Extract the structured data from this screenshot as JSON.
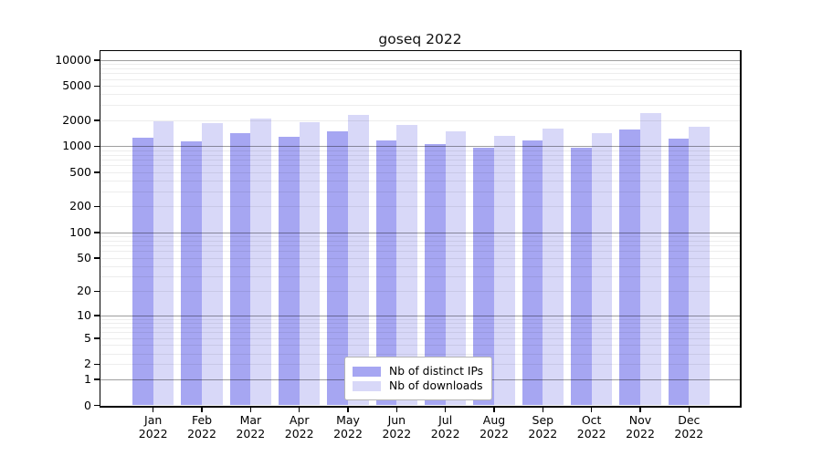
{
  "chart_data": {
    "type": "bar",
    "title": "goseq 2022",
    "year_label": "2022",
    "categories": [
      "Jan",
      "Feb",
      "Mar",
      "Apr",
      "May",
      "Jun",
      "Jul",
      "Aug",
      "Sep",
      "Oct",
      "Nov",
      "Dec"
    ],
    "series": [
      {
        "name": "Nb of distinct IPs",
        "color": "#a6a6f2",
        "values": [
          1245,
          1140,
          1430,
          1275,
          1490,
          1170,
          1050,
          970,
          1160,
          955,
          1550,
          1235
        ]
      },
      {
        "name": "Nb of downloads",
        "color": "#d8d8f8",
        "values": [
          1950,
          1855,
          2110,
          1900,
          2325,
          1750,
          1490,
          1320,
          1590,
          1410,
          2425,
          1685
        ]
      }
    ],
    "y_ticks": [
      0,
      1,
      2,
      5,
      10,
      20,
      50,
      100,
      200,
      500,
      1000,
      2000,
      5000,
      10000
    ],
    "y_scale": "log10(value+1)",
    "ylim": [
      0,
      12700
    ],
    "grid": {
      "horizontal": true,
      "minor_per_decade": [
        2,
        3,
        4,
        5,
        6,
        7,
        8,
        9
      ]
    },
    "legend_position": "bottom-center-inside",
    "colors": {
      "background": "#ffffff",
      "axis": "#000000",
      "major_grid": "rgba(0,0,0,0.38)",
      "minor_grid": "rgba(0,0,0,0.07)"
    }
  }
}
